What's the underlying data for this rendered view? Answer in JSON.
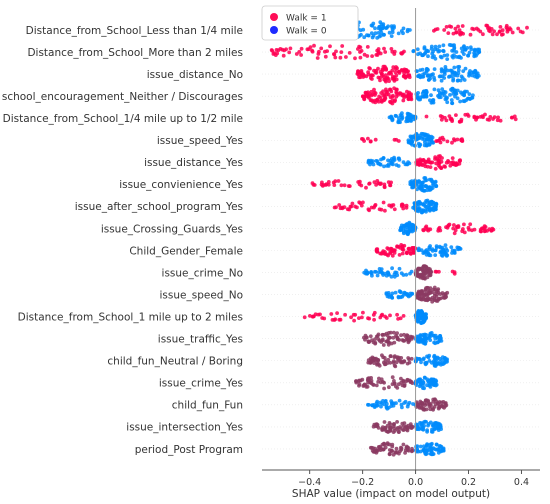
{
  "chart_data": {
    "type": "scatter",
    "subtype": "shap-beeswarm",
    "xlabel": "SHAP value (impact on model output)",
    "xlim": [
      -0.58,
      0.47
    ],
    "xticks": [
      -0.4,
      -0.2,
      0.0,
      0.2,
      0.4
    ],
    "xtick_labels": [
      "−0.4",
      "−0.2",
      "0.0",
      "0.2",
      "0.4"
    ],
    "legend": {
      "placement": "top-left",
      "entries": [
        {
          "label": "Walk = 1",
          "color": "#ff0d57"
        },
        {
          "label": "Walk = 0",
          "color": "#1e2bff"
        }
      ]
    },
    "colors": {
      "high": "#ff0052",
      "low": "#008bfb",
      "mixed": "#8b3a62",
      "zero_line": "#999999",
      "axis": "#555555"
    },
    "features": [
      {
        "name": "Distance_from_School_Less than 1/4 mile",
        "ranges": [
          [
            -0.36,
            -0.02,
            "low",
            90
          ],
          [
            0.06,
            0.43,
            "high",
            55
          ]
        ]
      },
      {
        "name": "Distance_from_School_More than 2 miles",
        "ranges": [
          [
            -0.55,
            -0.04,
            "high",
            70
          ],
          [
            -0.01,
            0.25,
            "low",
            80
          ]
        ]
      },
      {
        "name": "issue_distance_No",
        "ranges": [
          [
            -0.22,
            -0.02,
            "high",
            100
          ],
          [
            0.0,
            0.24,
            "low",
            90
          ]
        ]
      },
      {
        "name": "school_encouragement_Neither / Discourages",
        "ranges": [
          [
            -0.2,
            -0.01,
            "high",
            100
          ],
          [
            0.0,
            0.22,
            "low",
            85
          ]
        ]
      },
      {
        "name": "Distance_from_School_1/4 mile up to 1/2 mile",
        "ranges": [
          [
            -0.1,
            0.0,
            "low",
            50
          ],
          [
            0.04,
            0.38,
            "high",
            40
          ]
        ]
      },
      {
        "name": "issue_speed_Yes",
        "ranges": [
          [
            -0.22,
            -0.06,
            "high",
            10
          ],
          [
            -0.03,
            0.07,
            "low",
            70
          ],
          [
            0.06,
            0.18,
            "high",
            18
          ]
        ]
      },
      {
        "name": "issue_distance_Yes",
        "ranges": [
          [
            -0.18,
            -0.02,
            "low",
            45
          ],
          [
            0.0,
            0.17,
            "high",
            70
          ]
        ]
      },
      {
        "name": "issue_convienience_Yes",
        "ranges": [
          [
            -0.39,
            -0.06,
            "high",
            40
          ],
          [
            -0.02,
            0.08,
            "low",
            70
          ]
        ]
      },
      {
        "name": "issue_after_school_program_Yes",
        "ranges": [
          [
            -0.31,
            -0.02,
            "high",
            40
          ],
          [
            -0.01,
            0.08,
            "low",
            70
          ]
        ]
      },
      {
        "name": "issue_Crossing_Guards_Yes",
        "ranges": [
          [
            -0.06,
            0.0,
            "low",
            60
          ],
          [
            0.02,
            0.3,
            "high",
            50
          ]
        ]
      },
      {
        "name": "Child_Gender_Female",
        "ranges": [
          [
            -0.15,
            0.0,
            "high",
            60
          ],
          [
            0.01,
            0.17,
            "low",
            60
          ]
        ]
      },
      {
        "name": "issue_crime_No",
        "ranges": [
          [
            -0.2,
            -0.01,
            "low",
            40
          ],
          [
            0.0,
            0.06,
            "mixed",
            70
          ],
          [
            0.07,
            0.16,
            "high",
            6
          ]
        ]
      },
      {
        "name": "issue_speed_No",
        "ranges": [
          [
            -0.12,
            -0.01,
            "low",
            30
          ],
          [
            0.0,
            0.12,
            "mixed",
            80
          ]
        ]
      },
      {
        "name": "Distance_from_School_1 mile up to 2 miles",
        "ranges": [
          [
            -0.42,
            -0.03,
            "high",
            40
          ],
          [
            0.0,
            0.04,
            "low",
            70
          ]
        ]
      },
      {
        "name": "issue_traffic_Yes",
        "ranges": [
          [
            -0.2,
            -0.01,
            "mixed",
            70
          ],
          [
            0.0,
            0.1,
            "low",
            60
          ]
        ]
      },
      {
        "name": "child_fun_Neutral / Boring",
        "ranges": [
          [
            -0.18,
            -0.01,
            "mixed",
            60
          ],
          [
            0.0,
            0.12,
            "low",
            60
          ]
        ]
      },
      {
        "name": "issue_crime_Yes",
        "ranges": [
          [
            -0.23,
            -0.01,
            "mixed",
            60
          ],
          [
            0.0,
            0.08,
            "low",
            60
          ]
        ]
      },
      {
        "name": "child_fun_Fun",
        "ranges": [
          [
            -0.18,
            0.0,
            "low",
            40
          ],
          [
            0.0,
            0.12,
            "mixed",
            60
          ]
        ]
      },
      {
        "name": "issue_intersection_Yes",
        "ranges": [
          [
            -0.16,
            -0.01,
            "mixed",
            60
          ],
          [
            0.0,
            0.1,
            "low",
            60
          ]
        ]
      },
      {
        "name": "period_Post Program",
        "ranges": [
          [
            -0.17,
            -0.01,
            "mixed",
            60
          ],
          [
            0.0,
            0.11,
            "low",
            60
          ]
        ]
      }
    ]
  }
}
